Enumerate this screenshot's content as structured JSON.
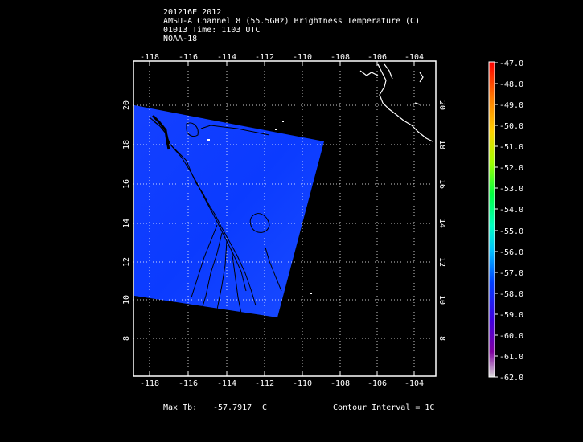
{
  "header": {
    "line1": "201216E 2012",
    "line2": "AMSU-A Channel 8 (55.5GHz) Brightness Temperature (C)",
    "line3": "01013 Time: 1103 UTC",
    "line4": "NOAA-18"
  },
  "map": {
    "lon_labels": [
      "-118",
      "-116",
      "-114",
      "-112",
      "-110",
      "-108",
      "-106",
      "-104"
    ],
    "lat_labels": [
      "8",
      "10",
      "12",
      "14",
      "16",
      "18",
      "20"
    ]
  },
  "colorbar": {
    "labels": [
      "-47.0",
      "-48.0",
      "-49.0",
      "-50.0",
      "-51.0",
      "-52.0",
      "-53.0",
      "-54.0",
      "-55.0",
      "-56.0",
      "-57.0",
      "-58.0",
      "-59.0",
      "-60.0",
      "-61.0",
      "-62.0"
    ]
  },
  "footer": {
    "max_tb_label": "Max Tb:",
    "max_tb_value": "-57.7917",
    "max_tb_unit": "C",
    "contour_interval": "Contour Interval = 1C"
  }
}
